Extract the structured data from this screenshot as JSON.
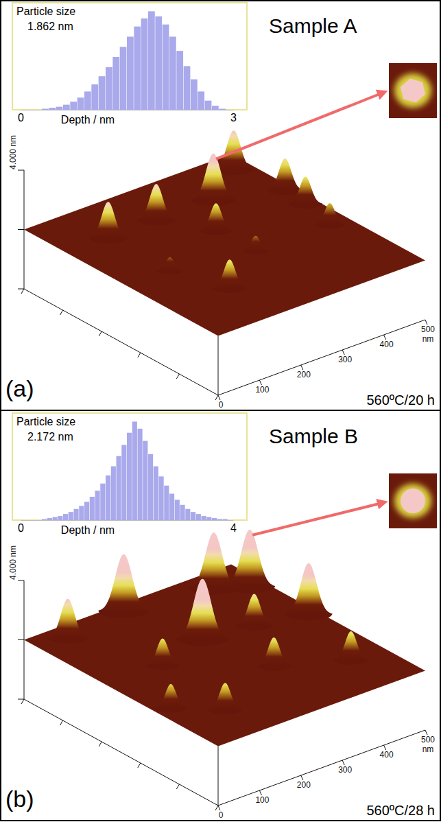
{
  "chart_data": [
    {
      "type": "surface",
      "label": "(a)",
      "title": "Sample A",
      "annotation": "560ºC/20 h",
      "color": "#6a1a0b",
      "xlabel": "nm",
      "xlim": [
        0,
        500
      ],
      "xticks": [
        0,
        100,
        200,
        300,
        400,
        500
      ],
      "ylim": [
        0,
        500
      ],
      "y_tick_marks": [
        0,
        100,
        200,
        300,
        400,
        500
      ],
      "zlim": [
        0,
        4
      ],
      "zticks": [
        {
          "value": 4,
          "label": "4.000 nm"
        }
      ],
      "z_tick_marks": [
        0,
        2
      ],
      "base_z": 2,
      "peaks": {
        "x": [
          101,
          218,
          354,
          464,
          484,
          477,
          277,
          458,
          280,
          103,
          144
        ],
        "y": [
          391,
          392,
          390,
          455,
          344,
          284,
          301,
          201,
          202,
          234,
          124
        ],
        "height": [
          3.2,
          3.2,
          3.55,
          3.3,
          3.05,
          2.9,
          2.9,
          2.7,
          2.5,
          2.45,
          2.95
        ]
      },
      "histogram": {
        "type": "histogram",
        "title": "Particle size",
        "subtitle": "1.862 nm",
        "xlabel": "Depth / nm",
        "color": "#a9a9ec",
        "xlim": [
          0,
          3
        ],
        "xticks": [
          0,
          3
        ],
        "ylim": [
          0,
          100
        ],
        "bins": [
          0,
          0.1,
          0.2,
          0.3,
          0.4,
          0.5,
          0.6,
          0.7,
          0.8,
          0.9,
          1,
          1.1,
          1.2,
          1.3,
          1.4,
          1.5,
          1.6,
          1.7,
          1.8,
          1.9,
          2,
          2.1,
          2.2,
          2.3,
          2.4,
          2.5,
          2.6,
          2.7,
          2.8,
          2.9,
          3
        ],
        "counts": [
          0,
          0,
          0,
          1,
          2,
          3,
          5,
          8,
          12,
          18,
          25,
          33,
          42,
          52,
          62,
          72,
          82,
          90,
          97,
          92,
          84,
          72,
          58,
          43,
          30,
          18,
          9,
          4,
          1,
          0
        ]
      }
    },
    {
      "type": "surface",
      "label": "(b)",
      "title": "Sample B",
      "annotation": "560ºC/28 h",
      "color": "#6a1a0b",
      "xlabel": "nm",
      "xlim": [
        0,
        500
      ],
      "xticks": [
        0,
        100,
        200,
        300,
        400,
        500
      ],
      "ylim": [
        0,
        500
      ],
      "y_tick_marks": [
        0,
        100,
        200,
        300,
        400,
        500
      ],
      "zlim": [
        0,
        4
      ],
      "zticks": [
        {
          "value": 4,
          "label": "4.000 nm"
        }
      ],
      "z_tick_marks": [
        0,
        2
      ],
      "base_z": 2,
      "peaks": {
        "x": [
          70,
          222,
          134,
          263,
          414,
          373,
          470,
          482,
          294,
          422,
          107,
          33
        ],
        "y": [
          462,
          480,
          286,
          321,
          453,
          305,
          420,
          281,
          170,
          108,
          96,
          157
        ],
        "height": [
          3.3,
          3.9,
          2.9,
          4.0,
          3.85,
          3.05,
          3.9,
          3.7,
          2.95,
          2.95,
          2.9,
          2.8
        ]
      },
      "histogram": {
        "type": "histogram",
        "title": "Particle size",
        "subtitle": "2.172 nm",
        "xlabel": "Depth / nm",
        "color": "#a9a9ec",
        "xlim": [
          0,
          4
        ],
        "xticks": [
          0,
          4
        ],
        "ylim": [
          0,
          100
        ],
        "bins": [
          0,
          0.1,
          0.2,
          0.3,
          0.4,
          0.5,
          0.6,
          0.7,
          0.8,
          0.9,
          1,
          1.1,
          1.2,
          1.3,
          1.4,
          1.5,
          1.6,
          1.7,
          1.8,
          1.9,
          2,
          2.1,
          2.2,
          2.3,
          2.4,
          2.5,
          2.6,
          2.7,
          2.8,
          2.9,
          3,
          3.1,
          3.2,
          3.3,
          3.4,
          3.5,
          3.6,
          3.7,
          3.8,
          3.9,
          4
        ],
        "counts": [
          0,
          0,
          0,
          0,
          1,
          2,
          3,
          4,
          6,
          8,
          11,
          14,
          18,
          23,
          29,
          36,
          44,
          53,
          63,
          74,
          86,
          97,
          90,
          78,
          65,
          53,
          43,
          34,
          26,
          20,
          15,
          11,
          8,
          6,
          4,
          3,
          2,
          1,
          1,
          0
        ]
      }
    }
  ]
}
